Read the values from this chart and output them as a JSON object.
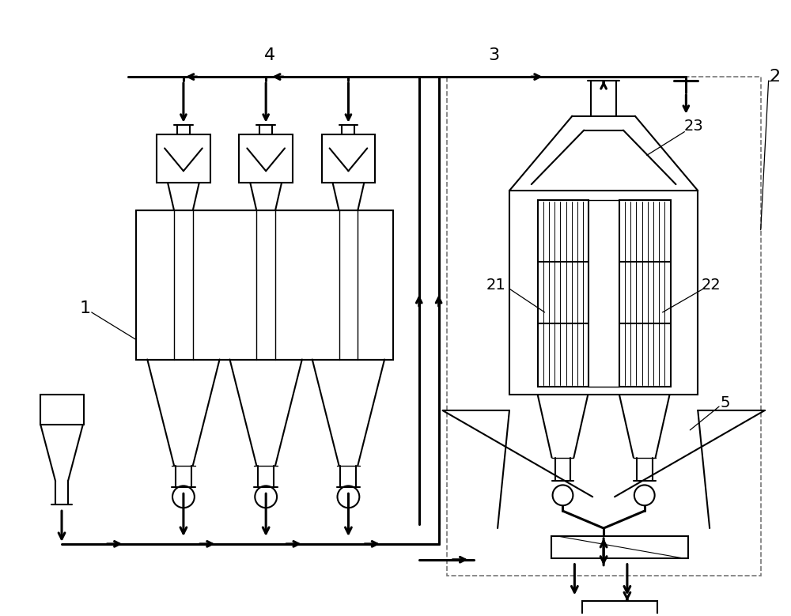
{
  "bg_color": "#ffffff",
  "line_color": "#000000",
  "fig_width": 10.0,
  "fig_height": 7.79
}
